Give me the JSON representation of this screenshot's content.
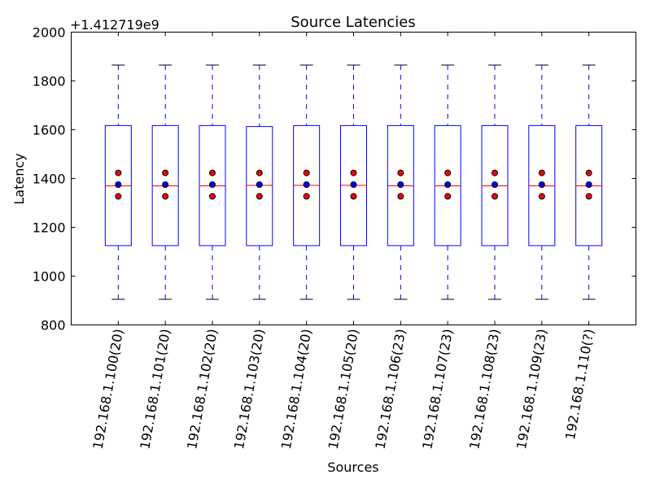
{
  "chart_data": {
    "type": "box",
    "title": "Source Latencies",
    "xlabel": "Sources",
    "ylabel": "Latency",
    "offset_label": "+1.412719e9",
    "ylim": [
      800,
      2000
    ],
    "yticks": [
      800,
      1000,
      1200,
      1400,
      1600,
      1800,
      2000
    ],
    "grid": false,
    "categories": [
      "192.168.1.100(20)",
      "192.168.1.101(20)",
      "192.168.1.102(20)",
      "192.168.1.103(20)",
      "192.168.1.104(20)",
      "192.168.1.105(20)",
      "192.168.1.106(23)",
      "192.168.1.107(23)",
      "192.168.1.108(23)",
      "192.168.1.109(23)",
      "192.168.1.110(?)"
    ],
    "boxes": [
      {
        "whisker_low": 905,
        "q1": 1125,
        "median": 1370,
        "q3": 1617,
        "whisker_high": 1865,
        "mean": 1375,
        "mean_minus": 1327,
        "mean_plus": 1423
      },
      {
        "whisker_low": 905,
        "q1": 1125,
        "median": 1370,
        "q3": 1617,
        "whisker_high": 1865,
        "mean": 1375,
        "mean_minus": 1327,
        "mean_plus": 1423
      },
      {
        "whisker_low": 905,
        "q1": 1125,
        "median": 1370,
        "q3": 1617,
        "whisker_high": 1865,
        "mean": 1375,
        "mean_minus": 1327,
        "mean_plus": 1423
      },
      {
        "whisker_low": 905,
        "q1": 1125,
        "median": 1372,
        "q3": 1613,
        "whisker_high": 1865,
        "mean": 1375,
        "mean_minus": 1327,
        "mean_plus": 1423
      },
      {
        "whisker_low": 905,
        "q1": 1125,
        "median": 1372,
        "q3": 1617,
        "whisker_high": 1865,
        "mean": 1375,
        "mean_minus": 1327,
        "mean_plus": 1423
      },
      {
        "whisker_low": 905,
        "q1": 1125,
        "median": 1372,
        "q3": 1617,
        "whisker_high": 1865,
        "mean": 1375,
        "mean_minus": 1327,
        "mean_plus": 1423
      },
      {
        "whisker_low": 905,
        "q1": 1125,
        "median": 1370,
        "q3": 1617,
        "whisker_high": 1865,
        "mean": 1375,
        "mean_minus": 1327,
        "mean_plus": 1423
      },
      {
        "whisker_low": 905,
        "q1": 1125,
        "median": 1370,
        "q3": 1617,
        "whisker_high": 1865,
        "mean": 1375,
        "mean_minus": 1327,
        "mean_plus": 1423
      },
      {
        "whisker_low": 905,
        "q1": 1125,
        "median": 1370,
        "q3": 1617,
        "whisker_high": 1865,
        "mean": 1375,
        "mean_minus": 1327,
        "mean_plus": 1423
      },
      {
        "whisker_low": 905,
        "q1": 1125,
        "median": 1370,
        "q3": 1617,
        "whisker_high": 1865,
        "mean": 1375,
        "mean_minus": 1327,
        "mean_plus": 1423
      },
      {
        "whisker_low": 905,
        "q1": 1125,
        "median": 1370,
        "q3": 1617,
        "whisker_high": 1865,
        "mean": 1375,
        "mean_minus": 1327,
        "mean_plus": 1423
      }
    ],
    "colors": {
      "box": "#0000ff",
      "median": "#ff0000",
      "whisker": "#0000ff",
      "cap": "#000000",
      "mean_marker": "#0000ff",
      "spread_marker": "#ff0000"
    }
  }
}
